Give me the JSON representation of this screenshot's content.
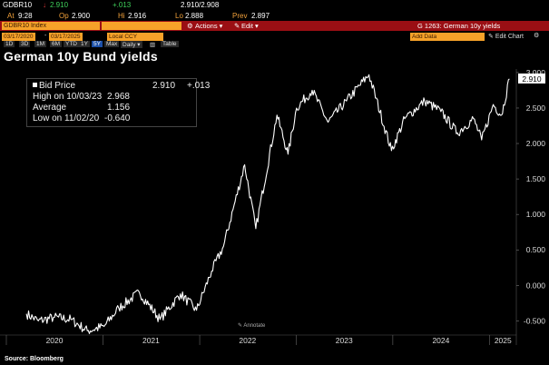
{
  "quote": {
    "ticker": "GDBR10",
    "arrow": "↓",
    "last": "2.910",
    "change": "+.013",
    "bid_ask": "2.910/2.908",
    "at_label": "At",
    "at_value": "9:28",
    "op_label": "Op",
    "op_value": "2.900",
    "hi_label": "Hi",
    "hi_value": "2.916",
    "lo_label": "Lo",
    "lo_value": "2.888",
    "prev_label": "Prev",
    "prev_value": "2.897"
  },
  "toolbar": {
    "security": "GDBR10 Index",
    "actions_label": "Actions ▾",
    "edit_label": "Edit ▾",
    "page_title": "G 1263: German 10y yields"
  },
  "datebar": {
    "start_date": "03/17/2020",
    "end_date": "03/17/2025",
    "currency": "Local CCY",
    "add_data": "Add Data",
    "edit_chart": "Edit Chart"
  },
  "periods": [
    "1D",
    "3D",
    "1M",
    "6M",
    "YTD",
    "1Y",
    "5Y",
    "Max",
    "Daily ▾",
    "Table"
  ],
  "active_period": "5Y",
  "title": "German 10y Bund yields",
  "legend": {
    "bid_label": "Bid Price",
    "bid_value": "2.910",
    "bid_change": "+.013",
    "high_label": "High on 10/03/23",
    "high_value": "2.968",
    "avg_label": "Average",
    "avg_value": "1.156",
    "low_label": "Low on 11/02/20",
    "low_value": "-0.640"
  },
  "annotate_label": "Annotate",
  "source": "Source: Bloomberg",
  "colors": {
    "background": "#000000",
    "line": "#ffffff",
    "accent": "#f6a229",
    "header_red": "#9a0f14"
  },
  "chart_data": {
    "type": "line",
    "title": "German 10y Bund yields",
    "series": [
      {
        "name": "Bid Price",
        "x": [
          "2020-03-17",
          "2020-05-01",
          "2020-07-01",
          "2020-09-01",
          "2020-11-02",
          "2021-01-04",
          "2021-03-01",
          "2021-05-18",
          "2021-08-04",
          "2021-10-20",
          "2021-12-20",
          "2022-02-15",
          "2022-04-01",
          "2022-06-20",
          "2022-08-01",
          "2022-10-20",
          "2022-12-01",
          "2023-01-02",
          "2023-03-02",
          "2023-05-01",
          "2023-07-10",
          "2023-10-03",
          "2023-12-27",
          "2024-02-15",
          "2024-05-01",
          "2024-07-01",
          "2024-09-01",
          "2024-11-01",
          "2024-12-02",
          "2025-01-15",
          "2025-02-15",
          "2025-03-17"
        ],
        "values": [
          -0.4,
          -0.5,
          -0.45,
          -0.48,
          -0.64,
          -0.58,
          -0.32,
          -0.1,
          -0.48,
          -0.12,
          -0.35,
          0.2,
          0.55,
          1.7,
          0.8,
          2.4,
          1.85,
          2.5,
          2.75,
          2.3,
          2.6,
          2.97,
          1.9,
          2.35,
          2.6,
          2.45,
          2.15,
          2.35,
          2.05,
          2.55,
          2.4,
          2.91
        ]
      }
    ],
    "y_ticks": [
      "3.000",
      "2.500",
      "2.000",
      "1.500",
      "1.000",
      "0.500",
      "0.000",
      "-0.500"
    ],
    "x_ticks": [
      "2020",
      "2021",
      "2022",
      "2023",
      "2024",
      "2025"
    ],
    "ylim": [
      -0.7,
      3.05
    ],
    "last_value_label": "2.910",
    "grid": false,
    "legend_placement": "top-left"
  }
}
